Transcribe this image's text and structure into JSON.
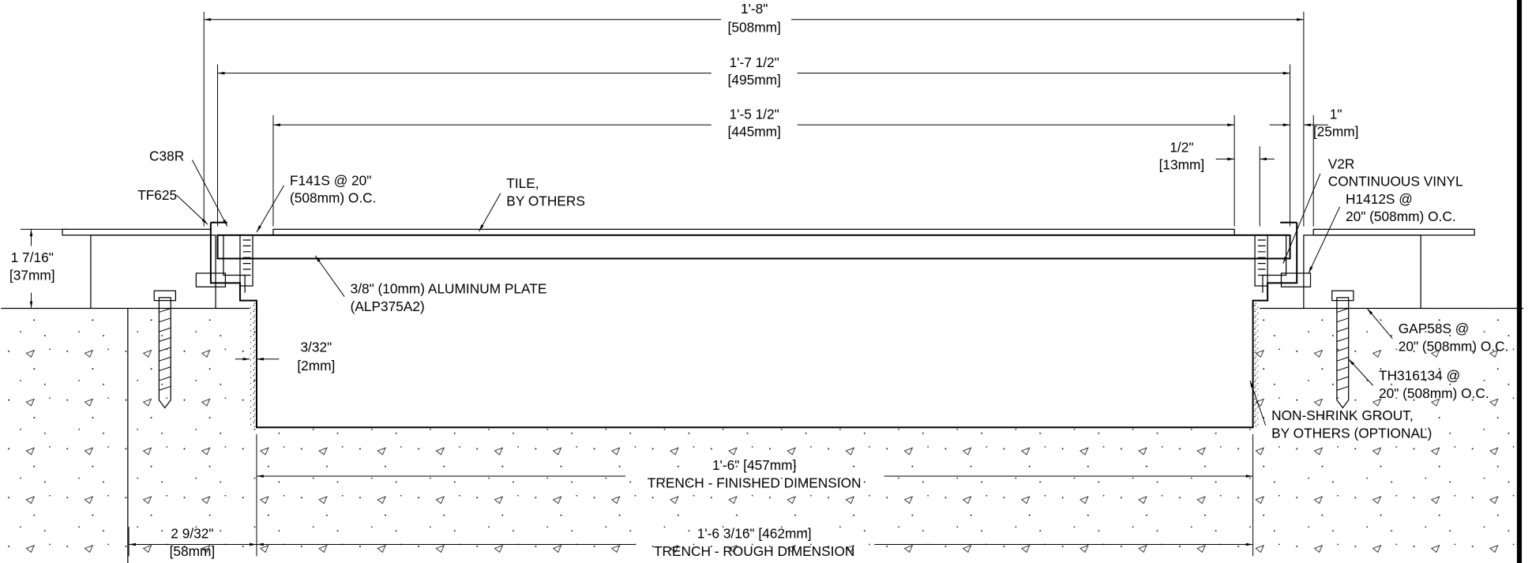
{
  "dimensions": [
    {
      "lines": [
        "1'-8\"",
        "[508mm]"
      ]
    },
    {
      "lines": [
        "1'-7 1/2\"",
        "[495mm]"
      ]
    },
    {
      "lines": [
        "1'-5 1/2\"",
        "[445mm]"
      ]
    },
    {
      "lines": [
        "1\"",
        "[25mm]"
      ]
    },
    {
      "lines": [
        "1/2\"",
        "[13mm]"
      ]
    },
    {
      "lines": [
        "1 7/16\"",
        "[37mm]"
      ]
    },
    {
      "lines": [
        "3/32\"",
        "[2mm]"
      ]
    },
    {
      "lines": [
        "2 9/32\"",
        "[58mm]"
      ]
    },
    {
      "lines": [
        "1'-6\" [457mm]",
        "TRENCH - FINISHED DIMENSION"
      ]
    },
    {
      "lines": [
        "1'-6 3/16\" [462mm]",
        "TRENCH - ROUGH DIMENSION"
      ]
    }
  ],
  "callouts": [
    {
      "lines": [
        "C38R"
      ]
    },
    {
      "lines": [
        "TF625"
      ]
    },
    {
      "lines": [
        "F141S @ 20\"",
        "(508mm) O.C."
      ]
    },
    {
      "lines": [
        "TILE,",
        "BY OTHERS"
      ]
    },
    {
      "lines": [
        "3/8\" (10mm) ALUMINUM PLATE",
        "(ALP375A2)"
      ]
    },
    {
      "lines": [
        "V2R",
        "CONTINUOUS VINYL"
      ]
    },
    {
      "lines": [
        "H1412S @",
        "20\" (508mm) O.C."
      ]
    },
    {
      "lines": [
        "GAP58S @",
        "20\" (508mm) O.C."
      ]
    },
    {
      "lines": [
        "TH316134 @",
        "20\" (508mm) O.C."
      ]
    },
    {
      "lines": [
        "NON-SHRINK GROUT,",
        "BY OTHERS (OPTIONAL)"
      ]
    }
  ]
}
